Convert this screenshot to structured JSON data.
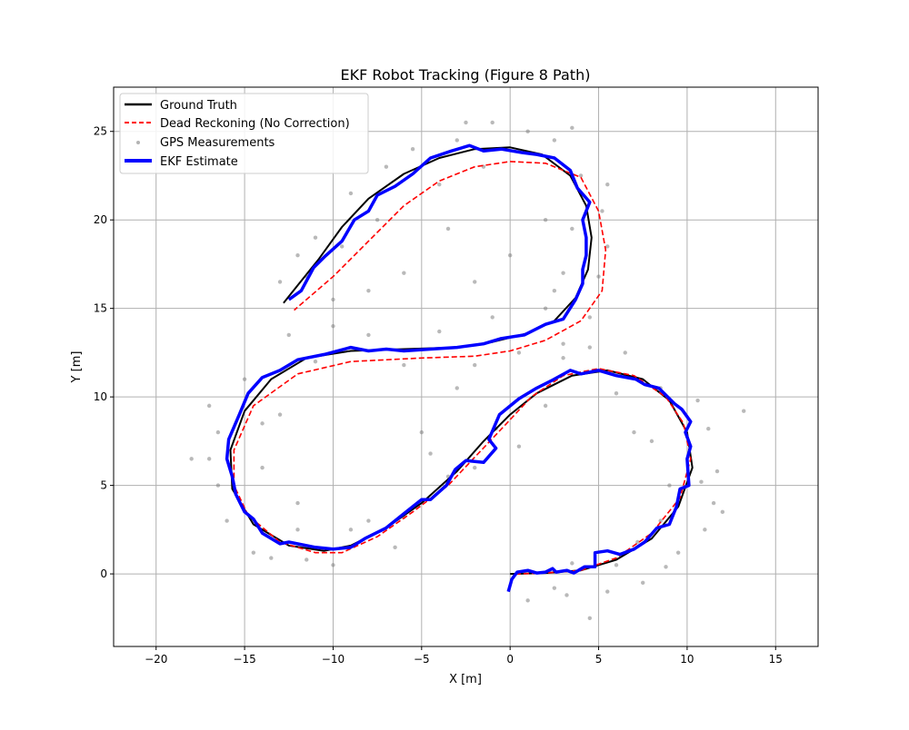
{
  "chart_data": {
    "type": "line",
    "title": "EKF Robot Tracking (Figure 8 Path)",
    "xlabel": "X [m]",
    "ylabel": "Y [m]",
    "xlim": [
      -22.4,
      17.4
    ],
    "ylim": [
      -4.1,
      27.5
    ],
    "xticks": [
      -20,
      -15,
      -10,
      -5,
      0,
      5,
      10,
      15
    ],
    "yticks": [
      0,
      5,
      10,
      15,
      20,
      25
    ],
    "grid": true,
    "legend_position": "top-left",
    "legend": [
      "Ground Truth",
      "Dead Reckoning (No Correction)",
      "GPS Measurements",
      "EKF Estimate"
    ],
    "series": [
      {
        "name": "Ground Truth",
        "style": "solid",
        "color": "#000000",
        "points": [
          [
            0,
            0
          ],
          [
            2,
            0.05
          ],
          [
            4,
            0.2
          ],
          [
            6,
            0.8
          ],
          [
            8,
            2
          ],
          [
            9.5,
            3.8
          ],
          [
            10.3,
            6
          ],
          [
            10,
            8
          ],
          [
            9,
            9.8
          ],
          [
            7.5,
            11
          ],
          [
            5.5,
            11.5
          ],
          [
            3.5,
            11.2
          ],
          [
            1.5,
            10.2
          ],
          [
            0,
            9
          ],
          [
            -1.5,
            7.5
          ],
          [
            -3,
            5.8
          ],
          [
            -5,
            4
          ],
          [
            -7,
            2.6
          ],
          [
            -9,
            1.6
          ],
          [
            -10.5,
            1.3
          ],
          [
            -12.5,
            1.6
          ],
          [
            -14.5,
            2.8
          ],
          [
            -15.7,
            4.8
          ],
          [
            -15.8,
            7
          ],
          [
            -15,
            9.2
          ],
          [
            -13.5,
            11
          ],
          [
            -11.5,
            12.2
          ],
          [
            -9,
            12.6
          ],
          [
            -6,
            12.7
          ],
          [
            -3,
            12.8
          ],
          [
            -1,
            13.1
          ],
          [
            1,
            13.6
          ],
          [
            2.5,
            14.3
          ],
          [
            3.7,
            15.6
          ],
          [
            4.4,
            17.2
          ],
          [
            4.6,
            19
          ],
          [
            4.3,
            20.8
          ],
          [
            3.4,
            22.5
          ],
          [
            1.8,
            23.7
          ],
          [
            0,
            24.1
          ],
          [
            -2,
            24
          ],
          [
            -4,
            23.5
          ],
          [
            -6,
            22.6
          ],
          [
            -8,
            21.2
          ],
          [
            -9.5,
            19.6
          ],
          [
            -10.8,
            17.8
          ],
          [
            -12,
            16.3
          ],
          [
            -12.8,
            15.3
          ]
        ]
      },
      {
        "name": "Dead Reckoning (No Correction)",
        "style": "dashed",
        "color": "#ff0000",
        "points": [
          [
            0.3,
            0
          ],
          [
            2,
            0.05
          ],
          [
            4,
            0.2
          ],
          [
            6,
            0.9
          ],
          [
            8,
            2.3
          ],
          [
            9.6,
            4.3
          ],
          [
            10.2,
            6.5
          ],
          [
            9.8,
            8.5
          ],
          [
            8.8,
            10
          ],
          [
            7,
            11.2
          ],
          [
            5,
            11.6
          ],
          [
            3,
            11.2
          ],
          [
            1.2,
            10
          ],
          [
            -0.2,
            8.5
          ],
          [
            -1.8,
            6.8
          ],
          [
            -3.5,
            5
          ],
          [
            -5.5,
            3.5
          ],
          [
            -7.5,
            2.1
          ],
          [
            -9.5,
            1.2
          ],
          [
            -11,
            1.2
          ],
          [
            -13,
            1.8
          ],
          [
            -14.8,
            3.3
          ],
          [
            -15.6,
            5
          ],
          [
            -15.6,
            7
          ],
          [
            -14.5,
            9.5
          ],
          [
            -12,
            11.3
          ],
          [
            -9,
            12
          ],
          [
            -5,
            12.2
          ],
          [
            -2,
            12.3
          ],
          [
            0,
            12.6
          ],
          [
            2,
            13.2
          ],
          [
            4,
            14.3
          ],
          [
            5.2,
            16
          ],
          [
            5.4,
            18.3
          ],
          [
            5,
            20.5
          ],
          [
            4,
            22.4
          ],
          [
            2,
            23.2
          ],
          [
            0,
            23.3
          ],
          [
            -2,
            23
          ],
          [
            -4,
            22.2
          ],
          [
            -6,
            20.8
          ],
          [
            -8,
            18.8
          ],
          [
            -10,
            16.8
          ],
          [
            -12.2,
            14.9
          ]
        ]
      },
      {
        "name": "GPS Measurements",
        "style": "scatter",
        "color": "#808080",
        "points": [
          [
            1,
            -1.5
          ],
          [
            2.5,
            -0.8
          ],
          [
            3.2,
            -1.2
          ],
          [
            4.5,
            -2.5
          ],
          [
            3.5,
            0.6
          ],
          [
            5.5,
            -1
          ],
          [
            6,
            0.5
          ],
          [
            7.5,
            -0.5
          ],
          [
            8.8,
            0.4
          ],
          [
            9.5,
            1.2
          ],
          [
            8.5,
            3
          ],
          [
            11,
            2.5
          ],
          [
            11.5,
            4
          ],
          [
            10.8,
            5.2
          ],
          [
            11.7,
            5.8
          ],
          [
            12,
            3.5
          ],
          [
            13.2,
            9.2
          ],
          [
            11.2,
            8.2
          ],
          [
            10.6,
            9.8
          ],
          [
            8,
            7.5
          ],
          [
            8.5,
            10.5
          ],
          [
            6,
            10.2
          ],
          [
            4.5,
            12.8
          ],
          [
            3,
            12.2
          ],
          [
            2,
            9.5
          ],
          [
            0.5,
            7.2
          ],
          [
            -0.8,
            8.2
          ],
          [
            -2,
            6
          ],
          [
            -3.5,
            5.5
          ],
          [
            -4.5,
            6.8
          ],
          [
            -6,
            3.2
          ],
          [
            -6.5,
            1.5
          ],
          [
            -8,
            3
          ],
          [
            -9,
            2.5
          ],
          [
            -10,
            0.5
          ],
          [
            -11.5,
            0.8
          ],
          [
            -12,
            2.5
          ],
          [
            -13.5,
            0.9
          ],
          [
            -14.5,
            1.2
          ],
          [
            -16,
            3
          ],
          [
            -16.5,
            5
          ],
          [
            -17,
            6.5
          ],
          [
            -18,
            6.5
          ],
          [
            -16.5,
            8
          ],
          [
            -14,
            8.5
          ],
          [
            -15,
            11
          ],
          [
            -13,
            9
          ],
          [
            -12.5,
            13.5
          ],
          [
            -11,
            12
          ],
          [
            -10,
            14
          ],
          [
            -8,
            13.5
          ],
          [
            -6,
            11.8
          ],
          [
            -4,
            13.7
          ],
          [
            -2,
            11.8
          ],
          [
            -1,
            14.5
          ],
          [
            0.5,
            12.5
          ],
          [
            2,
            15
          ],
          [
            3,
            13
          ],
          [
            4.5,
            14.5
          ],
          [
            3,
            17
          ],
          [
            5,
            16.8
          ],
          [
            5.5,
            18.5
          ],
          [
            3.5,
            19.5
          ],
          [
            5.2,
            20.5
          ],
          [
            5.5,
            22
          ],
          [
            4,
            22.5
          ],
          [
            2.5,
            24.5
          ],
          [
            1,
            25
          ],
          [
            -1,
            25.5
          ],
          [
            -1.5,
            23
          ],
          [
            -3,
            24.5
          ],
          [
            -4,
            22
          ],
          [
            -5.5,
            24
          ],
          [
            -7,
            23
          ],
          [
            -7.5,
            20
          ],
          [
            -9,
            21.5
          ],
          [
            -9.5,
            18.5
          ],
          [
            -11,
            19
          ],
          [
            -12,
            18
          ],
          [
            -11.5,
            16.8
          ],
          [
            -13,
            16.5
          ],
          [
            -10,
            15.5
          ],
          [
            -8,
            16
          ],
          [
            -6,
            17
          ],
          [
            -3.5,
            19.5
          ],
          [
            -2,
            16.5
          ],
          [
            0,
            18
          ],
          [
            2,
            20
          ],
          [
            2.5,
            16
          ],
          [
            3.5,
            25.2
          ],
          [
            -2.5,
            25.5
          ],
          [
            9,
            5
          ],
          [
            7,
            8
          ],
          [
            -5,
            8
          ],
          [
            -14,
            6
          ],
          [
            -12,
            4
          ],
          [
            7.2,
            1.8
          ],
          [
            -3,
            10.5
          ],
          [
            6.5,
            12.5
          ],
          [
            -17,
            9.5
          ]
        ]
      },
      {
        "name": "EKF Estimate",
        "style": "solid-thick",
        "color": "#0000ff",
        "points": [
          [
            -0.1,
            -1
          ],
          [
            0.1,
            -0.3
          ],
          [
            0.4,
            0.1
          ],
          [
            1,
            0.2
          ],
          [
            1.5,
            0.05
          ],
          [
            2,
            0.1
          ],
          [
            2.4,
            0.3
          ],
          [
            2.6,
            0.1
          ],
          [
            3.2,
            0.2
          ],
          [
            3.6,
            0.05
          ],
          [
            4.2,
            0.4
          ],
          [
            4.8,
            0.4
          ],
          [
            4.8,
            1.2
          ],
          [
            5.5,
            1.3
          ],
          [
            6.2,
            1.1
          ],
          [
            7,
            1.4
          ],
          [
            7.6,
            1.8
          ],
          [
            8.3,
            2.6
          ],
          [
            9,
            2.8
          ],
          [
            9.4,
            3.8
          ],
          [
            9.6,
            4.8
          ],
          [
            10.1,
            5
          ],
          [
            10,
            6.5
          ],
          [
            10.2,
            7.2
          ],
          [
            9.9,
            8
          ],
          [
            10.2,
            8.6
          ],
          [
            9.7,
            9.3
          ],
          [
            9.3,
            9.6
          ],
          [
            8.4,
            10.5
          ],
          [
            7.6,
            10.7
          ],
          [
            7.1,
            11
          ],
          [
            6,
            11.2
          ],
          [
            5,
            11.5
          ],
          [
            4,
            11.3
          ],
          [
            3.4,
            11.5
          ],
          [
            2.3,
            10.9
          ],
          [
            1.5,
            10.5
          ],
          [
            0.5,
            9.9
          ],
          [
            -0.6,
            9
          ],
          [
            -1.2,
            7.6
          ],
          [
            -0.8,
            7.1
          ],
          [
            -1.5,
            6.3
          ],
          [
            -2.5,
            6.4
          ],
          [
            -3.1,
            5.9
          ],
          [
            -3.6,
            5
          ],
          [
            -4.5,
            4.2
          ],
          [
            -5,
            4.2
          ],
          [
            -6,
            3.4
          ],
          [
            -7,
            2.6
          ],
          [
            -8.2,
            2
          ],
          [
            -9,
            1.5
          ],
          [
            -10,
            1.4
          ],
          [
            -11,
            1.5
          ],
          [
            -12.5,
            1.8
          ],
          [
            -13,
            1.7
          ],
          [
            -14,
            2.3
          ],
          [
            -14.5,
            3.1
          ],
          [
            -15,
            3.5
          ],
          [
            -15.5,
            4.5
          ],
          [
            -15.7,
            5.5
          ],
          [
            -16,
            6.5
          ],
          [
            -15.9,
            7.6
          ],
          [
            -15.3,
            9
          ],
          [
            -14.8,
            10.2
          ],
          [
            -14,
            11.1
          ],
          [
            -13,
            11.5
          ],
          [
            -12,
            12.1
          ],
          [
            -10.5,
            12.4
          ],
          [
            -9,
            12.8
          ],
          [
            -8,
            12.6
          ],
          [
            -7,
            12.7
          ],
          [
            -6,
            12.6
          ],
          [
            -4.5,
            12.7
          ],
          [
            -3,
            12.8
          ],
          [
            -1.5,
            13
          ],
          [
            -0.5,
            13.3
          ],
          [
            0.8,
            13.5
          ],
          [
            2,
            14.1
          ],
          [
            3,
            14.4
          ],
          [
            3.7,
            15.5
          ],
          [
            4.1,
            16.4
          ],
          [
            4.1,
            17.2
          ],
          [
            4.3,
            18
          ],
          [
            4.3,
            19
          ],
          [
            4.1,
            20
          ],
          [
            4.5,
            21
          ],
          [
            3.8,
            21.8
          ],
          [
            3.4,
            22.8
          ],
          [
            2.5,
            23.5
          ],
          [
            1.5,
            23.7
          ],
          [
            0.7,
            23.8
          ],
          [
            -0.5,
            24
          ],
          [
            -1.5,
            23.9
          ],
          [
            -2.3,
            24.2
          ],
          [
            -3.3,
            23.9
          ],
          [
            -4.5,
            23.5
          ],
          [
            -5.5,
            22.6
          ],
          [
            -6.5,
            21.9
          ],
          [
            -7.5,
            21.4
          ],
          [
            -8,
            20.5
          ],
          [
            -8.8,
            20
          ],
          [
            -9.5,
            18.8
          ],
          [
            -10.5,
            17.9
          ],
          [
            -11.1,
            17.3
          ],
          [
            -11.8,
            16
          ],
          [
            -12.5,
            15.5
          ]
        ]
      }
    ]
  }
}
